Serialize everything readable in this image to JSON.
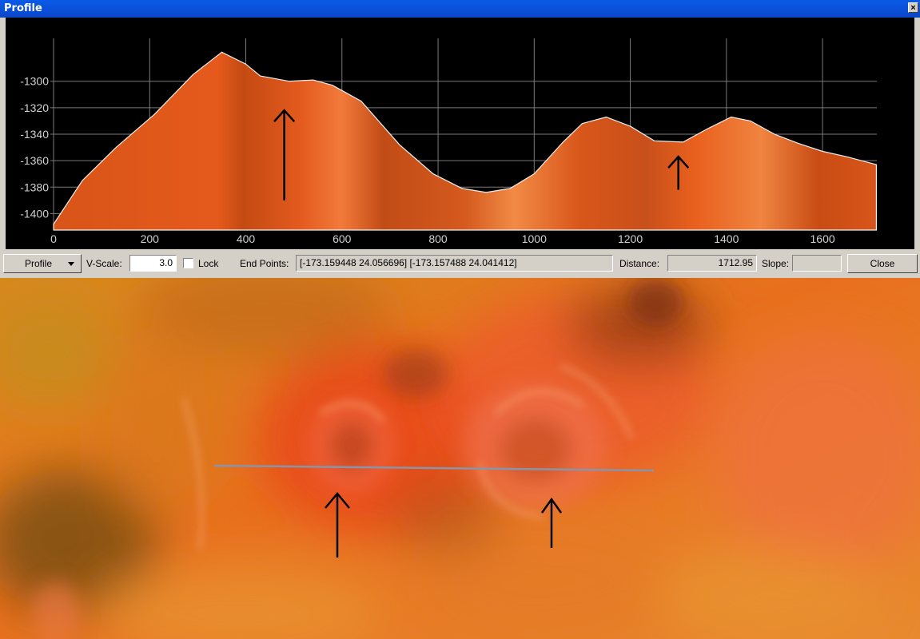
{
  "window": {
    "title": "Profile",
    "close_glyph": "×"
  },
  "toolbar": {
    "profile_button": "Profile",
    "vscale_label": "V-Scale:",
    "vscale_value": "3.0",
    "lock_label": "Lock",
    "endpoints_label": "End Points:",
    "endpoints_value": "[-173.159448 24.056696] [-173.157488 24.041412]",
    "distance_label": "Distance:",
    "distance_value": "1712.95",
    "slope_label": "Slope:",
    "slope_value": "",
    "close_button": "Close"
  },
  "colors": {
    "profile_fill": "#e0561a",
    "titlebar": "#0a4fd6",
    "profile_bg": "#000000",
    "grid": "#7a7a7a"
  },
  "chart_data": {
    "type": "area",
    "title": "",
    "xlabel": "",
    "ylabel": "",
    "xlim": [
      0,
      1712.95
    ],
    "ylim": [
      -1410,
      -1270
    ],
    "xticks": [
      0,
      200,
      400,
      600,
      800,
      1000,
      1200,
      1400,
      1600
    ],
    "yticks": [
      -1300,
      -1320,
      -1340,
      -1360,
      -1380,
      -1400
    ],
    "grid": true,
    "x": [
      0,
      60,
      130,
      210,
      290,
      350,
      400,
      430,
      490,
      540,
      580,
      600,
      640,
      720,
      790,
      850,
      900,
      950,
      1000,
      1060,
      1100,
      1150,
      1200,
      1250,
      1310,
      1360,
      1410,
      1450,
      1500,
      1550,
      1600,
      1650,
      1712
    ],
    "y": [
      -1408,
      -1375,
      -1350,
      -1325,
      -1295,
      -1278,
      -1287,
      -1296,
      -1300,
      -1299,
      -1303,
      -1307,
      -1315,
      -1348,
      -1370,
      -1381,
      -1384,
      -1381,
      -1370,
      -1346,
      -1332,
      -1327,
      -1334,
      -1345,
      -1346,
      -1336,
      -1327,
      -1330,
      -1340,
      -1347,
      -1353,
      -1357,
      -1363
    ],
    "annotations": [
      {
        "type": "arrow",
        "x": 480,
        "y_from": -1390,
        "y_to": -1322
      },
      {
        "type": "arrow",
        "x": 1300,
        "y_from": -1382,
        "y_to": -1357
      }
    ]
  },
  "map": {
    "profile_line": {
      "from": [
        268,
        235
      ],
      "to": [
        818,
        241
      ]
    },
    "arrows": [
      {
        "x": 422,
        "y1": 350,
        "y2": 268
      },
      {
        "x": 690,
        "y1": 338,
        "y2": 275
      }
    ]
  }
}
